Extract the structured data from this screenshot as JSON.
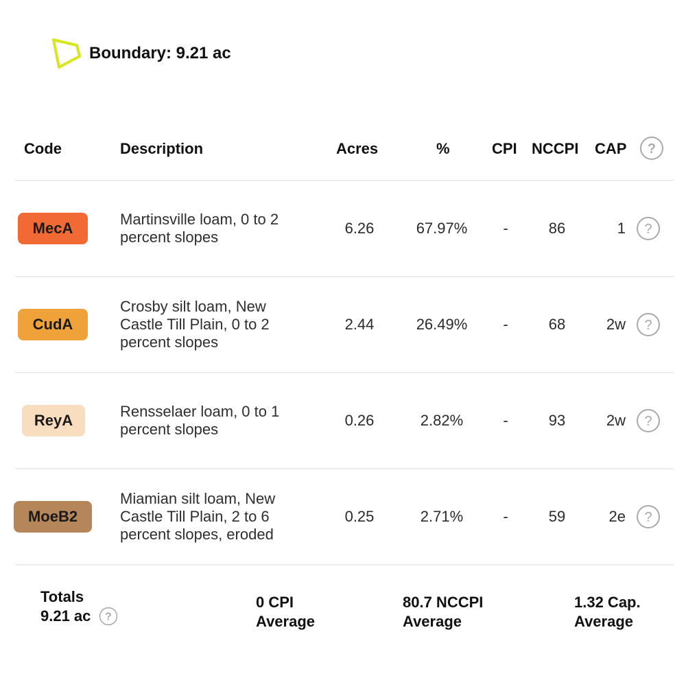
{
  "boundary": {
    "label": "Boundary: 9.21 ac",
    "icon": "polygon-boundary-icon",
    "icon_color": "#d7e61e"
  },
  "table": {
    "headers": {
      "code": "Code",
      "description": "Description",
      "acres": "Acres",
      "percent": "%",
      "cpi": "CPI",
      "nccpi": "NCCPI",
      "cap": "CAP"
    },
    "rows": [
      {
        "code": "MecA",
        "badge_bg": "#f26a33",
        "badge_fg": "#1a1a1a",
        "description_lines": [
          "Martinsville loam, 0 to 2",
          "percent slopes"
        ],
        "acres": "6.26",
        "percent": "67.97%",
        "cpi": "-",
        "nccpi": "86",
        "cap": "1"
      },
      {
        "code": "CudA",
        "badge_bg": "#f0a23a",
        "badge_fg": "#1a1a1a",
        "description_lines": [
          "Crosby silt loam, New",
          "Castle Till Plain, 0 to 2",
          "percent slopes"
        ],
        "acres": "2.44",
        "percent": "26.49%",
        "cpi": "-",
        "nccpi": "68",
        "cap": "2w"
      },
      {
        "code": "ReyA",
        "badge_bg": "#f8ddbf",
        "badge_fg": "#1a1a1a",
        "description_lines": [
          "Rensselaer loam, 0 to 1",
          "percent slopes"
        ],
        "acres": "0.26",
        "percent": "2.82%",
        "cpi": "-",
        "nccpi": "93",
        "cap": "2w"
      },
      {
        "code": "MoeB2",
        "badge_bg": "#b5865a",
        "badge_fg": "#1a1a1a",
        "description_lines": [
          "Miamian silt loam, New",
          "Castle Till Plain, 2 to 6",
          "percent slopes, eroded"
        ],
        "acres": "0.25",
        "percent": "2.71%",
        "cpi": "-",
        "nccpi": "59",
        "cap": "2e"
      }
    ]
  },
  "totals": {
    "label_line1": "Totals",
    "label_line2": "9.21 ac",
    "cpi_line1": "0 CPI",
    "cpi_line2": "Average",
    "nccpi_line1": "80.7 NCCPI",
    "nccpi_line2": "Average",
    "cap_line1": "1.32 Cap.",
    "cap_line2": "Average"
  },
  "icons": {
    "help": "question-circle-icon",
    "help_color": "#a9a9a9"
  }
}
